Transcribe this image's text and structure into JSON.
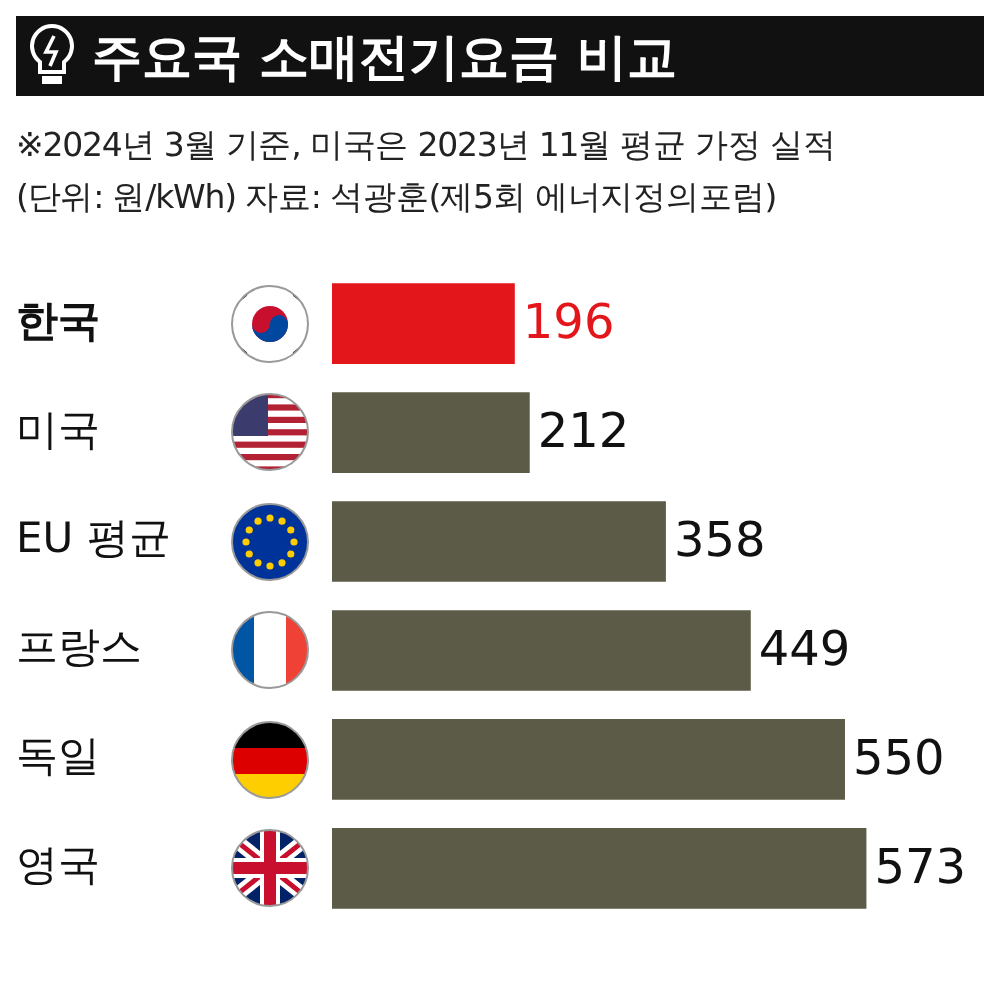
{
  "chart_data": {
    "type": "bar",
    "orientation": "horizontal",
    "title": "주요국 소매전기요금 비교",
    "annotations": [
      "※2024년 3월 기준, 미국은 2023년 11월 평균 가정 실적",
      "(단위: 원/kWh) 자료: 석광훈(제5회 에너지정의포럼)"
    ],
    "categories": [
      "한국",
      "미국",
      "EU 평균",
      "프랑스",
      "독일",
      "영국"
    ],
    "values": [
      196,
      212,
      358,
      449,
      550,
      573
    ],
    "colors": [
      "#e3171b",
      "#5c5b47",
      "#5c5b47",
      "#5c5b47",
      "#5c5b47",
      "#5c5b47"
    ],
    "data_labels": true,
    "grid": false,
    "legend": false
  }
}
